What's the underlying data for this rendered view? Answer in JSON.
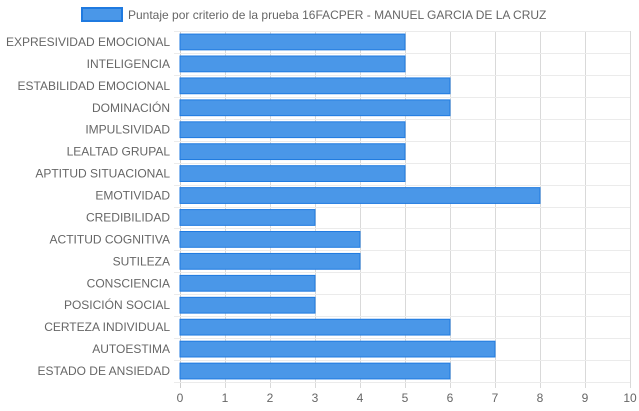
{
  "chart_data": {
    "type": "bar",
    "orientation": "horizontal",
    "series": [
      {
        "name": "Puntaje por criterio de la prueba 16FACPER - MANUEL GARCIA DE LA CRUZ",
        "color": "#4a97e8",
        "border_color": "#1f7ae0",
        "values": [
          5,
          5,
          6,
          6,
          5,
          5,
          5,
          8,
          3,
          4,
          4,
          3,
          3,
          6,
          7,
          6
        ]
      }
    ],
    "categories": [
      "EXPRESIVIDAD EMOCIONAL",
      "INTELIGENCIA",
      "ESTABILIDAD EMOCIONAL",
      "DOMINACIÓN",
      "IMPULSIVIDAD",
      "LEALTAD GRUPAL",
      "APTITUD SITUACIONAL",
      "EMOTIVIDAD",
      "CREDIBILIDAD",
      "ACTITUD COGNITIVA",
      "SUTILEZA",
      "CONSCIENCIA",
      "POSICIÓN SOCIAL",
      "CERTEZA INDIVIDUAL",
      "AUTOESTIMA",
      "ESTADO DE ANSIEDAD"
    ],
    "xlim": [
      0,
      10
    ],
    "xticks": [
      0,
      1,
      2,
      3,
      4,
      5,
      6,
      7,
      8,
      9,
      10
    ],
    "grid": true,
    "legend_position": "top"
  }
}
